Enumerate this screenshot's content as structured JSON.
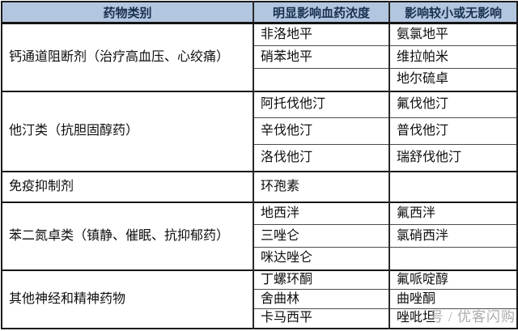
{
  "table": {
    "headers": [
      "药物类别",
      "明显影响血药浓度",
      "影响较小或无影响"
    ],
    "blocks": [
      {
        "category": "钙通道阻断剂（治疗高血压、心绞痛）",
        "affected": [
          "非洛地平",
          "硝苯地平",
          ""
        ],
        "unaffected": [
          "氨氯地平",
          "维拉帕米",
          "地尔硫卓"
        ]
      },
      {
        "category": "他汀类（抗胆固醇药）",
        "affected": [
          "阿托伐他汀",
          "辛伐他汀",
          "洛伐他汀"
        ],
        "unaffected": [
          "氟伐他汀",
          "普伐他汀",
          "瑞舒伐他汀"
        ]
      },
      {
        "category": "免疫抑制剂",
        "affected": [
          "环孢素"
        ],
        "unaffected": [
          ""
        ]
      },
      {
        "category": "苯二氮卓类（镇静、催眠、抗抑郁药）",
        "affected": [
          "地西泮",
          "三唑仑",
          "咪达唑仑"
        ],
        "unaffected": [
          "氟西泮",
          "氯硝西泮",
          ""
        ]
      },
      {
        "category": "其他神经和精神药物",
        "affected": [
          "丁螺环酮",
          "舍曲林",
          "卡马西平"
        ],
        "unaffected": [
          "氟哌啶醇",
          "曲唑酮",
          "唑吡坦"
        ]
      }
    ]
  },
  "watermark": {
    "text": "号 / 优客闪购"
  },
  "colors": {
    "header_bg": "#b2c6df",
    "header_text": "#1a3050",
    "border": "#1b1b1b",
    "watermark_text": "#ababab"
  }
}
